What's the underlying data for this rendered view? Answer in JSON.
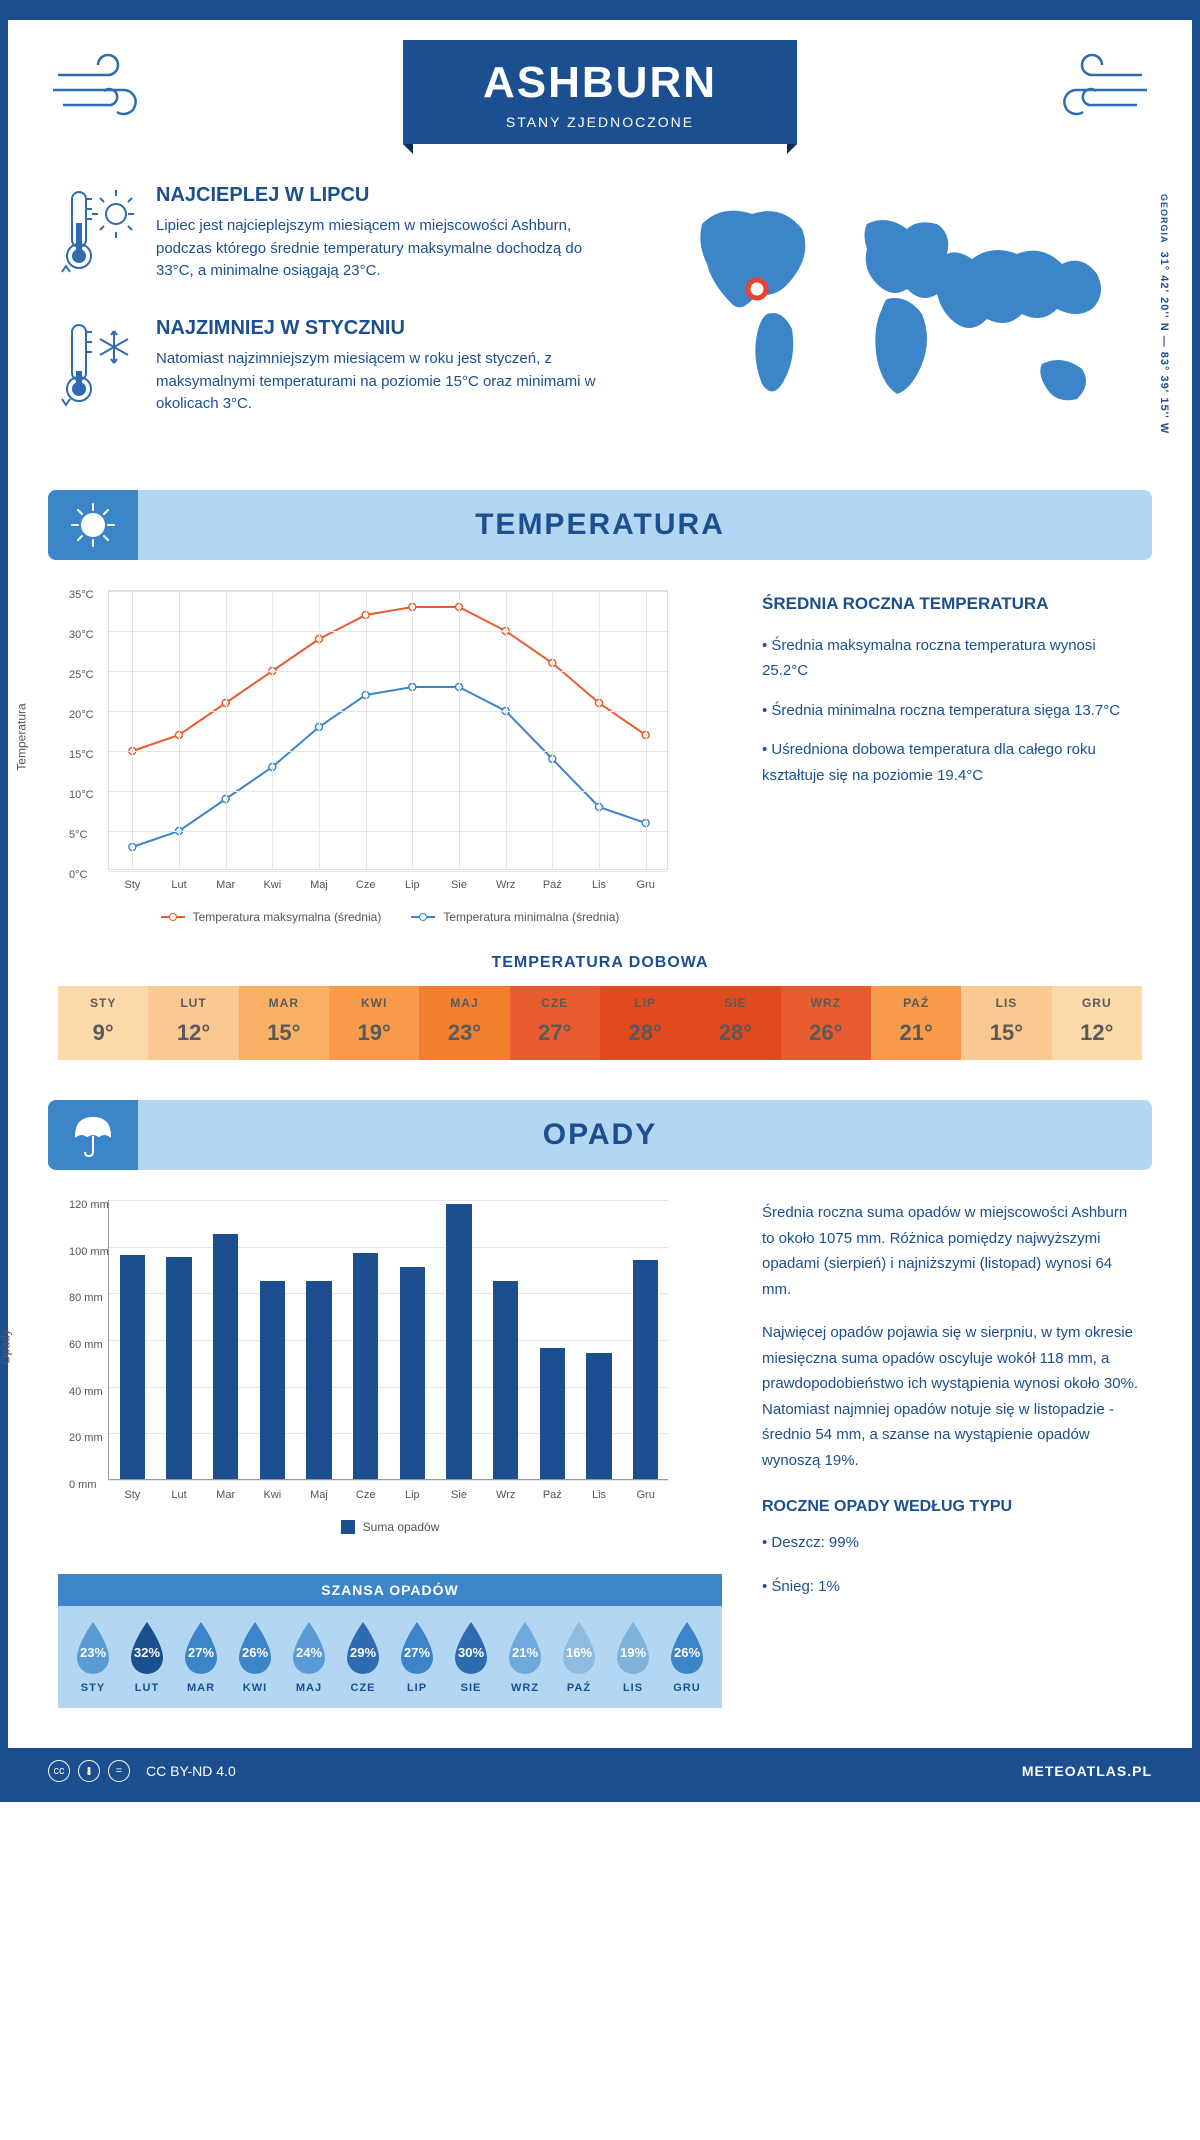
{
  "header": {
    "city": "ASHBURN",
    "country": "STANY ZJEDNOCZONE"
  },
  "coords": {
    "region": "GEORGIA",
    "text": "31° 42' 20'' N — 83° 39' 15'' W"
  },
  "intro": {
    "warm": {
      "title": "NAJCIEPLEJ W LIPCU",
      "text": "Lipiec jest najcieplejszym miesiącem w miejscowości Ashburn, podczas którego średnie temperatury maksymalne dochodzą do 33°C, a minimalne osiągają 23°C."
    },
    "cold": {
      "title": "NAJZIMNIEJ W STYCZNIU",
      "text": "Natomiast najzimniejszym miesiącem w roku jest styczeń, z maksymalnymi temperaturami na poziomie 15°C oraz minimami w okolicach 3°C."
    }
  },
  "sections": {
    "temperature": "TEMPERATURA",
    "precipitation": "OPADY"
  },
  "temp_chart": {
    "type": "line",
    "months": [
      "Sty",
      "Lut",
      "Mar",
      "Kwi",
      "Maj",
      "Cze",
      "Lip",
      "Sie",
      "Wrz",
      "Paź",
      "Lis",
      "Gru"
    ],
    "max_series": [
      15,
      17,
      21,
      25,
      29,
      32,
      33,
      33,
      30,
      26,
      21,
      17
    ],
    "min_series": [
      3,
      5,
      9,
      13,
      18,
      22,
      23,
      23,
      20,
      14,
      8,
      6
    ],
    "max_color": "#e85c2f",
    "min_color": "#3c85c9",
    "ylim": [
      0,
      35
    ],
    "ytick_step": 5,
    "y_unit": "°C",
    "y_axis_title": "Temperatura",
    "grid_color": "#e5e5e5",
    "background_color": "#ffffff",
    "legend_max": "Temperatura maksymalna (średnia)",
    "legend_min": "Temperatura minimalna (średnia)"
  },
  "temp_text": {
    "title": "ŚREDNIA ROCZNA TEMPERATURA",
    "p1": "• Średnia maksymalna roczna temperatura wynosi 25.2°C",
    "p2": "• Średnia minimalna roczna temperatura sięga 13.7°C",
    "p3": "• Uśredniona dobowa temperatura dla całego roku kształtuje się na poziomie 19.4°C"
  },
  "daily_temp": {
    "title": "TEMPERATURA DOBOWA",
    "months": [
      "STY",
      "LUT",
      "MAR",
      "KWI",
      "MAJ",
      "CZE",
      "LIP",
      "SIE",
      "WRZ",
      "PAŹ",
      "LIS",
      "GRU"
    ],
    "values": [
      "9°",
      "12°",
      "15°",
      "19°",
      "23°",
      "27°",
      "28°",
      "28°",
      "26°",
      "21°",
      "15°",
      "12°"
    ],
    "colors": [
      "#fbd9a9",
      "#fac891",
      "#f8b065",
      "#f79b4a",
      "#f27f2e",
      "#e85c2f",
      "#e04a1c",
      "#e04a1c",
      "#e85c2f",
      "#f79b4a",
      "#fac891",
      "#fbd9a9"
    ]
  },
  "precip_chart": {
    "type": "bar",
    "months": [
      "Sty",
      "Lut",
      "Mar",
      "Kwi",
      "Maj",
      "Cze",
      "Lip",
      "Sie",
      "Wrz",
      "Paź",
      "Lis",
      "Gru"
    ],
    "values": [
      96,
      95,
      105,
      85,
      85,
      97,
      91,
      118,
      85,
      56,
      54,
      94
    ],
    "bar_color": "#1b4f8f",
    "ylim": [
      0,
      120
    ],
    "ytick_step": 20,
    "y_unit": " mm",
    "y_axis_title": "Opady",
    "legend": "Suma opadów"
  },
  "precip_text": {
    "p1": "Średnia roczna suma opadów w miejscowości Ashburn to około 1075 mm. Różnica pomiędzy najwyższymi opadami (sierpień) i najniższymi (listopad) wynosi 64 mm.",
    "p2": "Najwięcej opadów pojawia się w sierpniu, w tym okresie miesięczna suma opadów oscyluje wokół 118 mm, a prawdopodobieństwo ich wystąpienia wynosi około 30%. Natomiast najmniej opadów notuje się w listopadzie - średnio 54 mm, a szanse na wystąpienie opadów wynoszą 19%.",
    "type_title": "ROCZNE OPADY WEDŁUG TYPU",
    "rain": "• Deszcz: 99%",
    "snow": "• Śnieg: 1%"
  },
  "chance": {
    "title": "SZANSA OPADÓW",
    "months": [
      "STY",
      "LUT",
      "MAR",
      "KWI",
      "MAJ",
      "CZE",
      "LIP",
      "SIE",
      "WRZ",
      "PAŹ",
      "LIS",
      "GRU"
    ],
    "values": [
      "23%",
      "32%",
      "27%",
      "26%",
      "24%",
      "29%",
      "27%",
      "30%",
      "21%",
      "16%",
      "19%",
      "26%"
    ],
    "drop_colors": [
      "#5b9bd5",
      "#1b4f8f",
      "#3c85c9",
      "#3c85c9",
      "#5b9bd5",
      "#2e6bb0",
      "#3c85c9",
      "#2e6bb0",
      "#6fa8dc",
      "#8ebce0",
      "#7fb3da",
      "#3c85c9"
    ]
  },
  "footer": {
    "license": "CC BY-ND 4.0",
    "site": "METEOATLAS.PL"
  }
}
